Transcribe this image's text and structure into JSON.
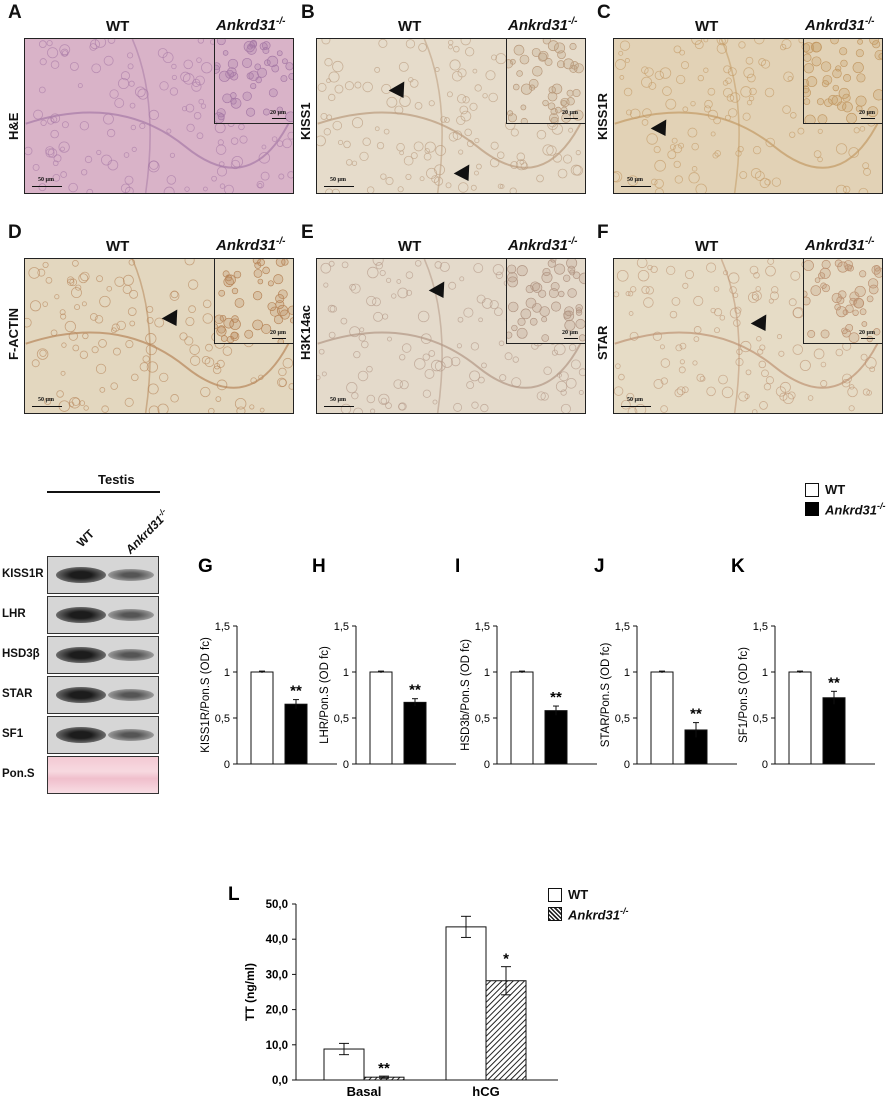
{
  "micrographs": [
    {
      "letter": "A",
      "stain": "H&E",
      "wt": "WT",
      "ko": "Ankrd31",
      "sup": "-/-",
      "scale_main": "50 µm",
      "scale_inset": "20 µm",
      "bg": "#d9b3c8",
      "cell": "#a77aa6",
      "arrows": []
    },
    {
      "letter": "B",
      "stain": "KISS1",
      "wt": "WT",
      "ko": "Ankrd31",
      "sup": "-/-",
      "scale_main": "50 µm",
      "scale_inset": "20 µm",
      "bg": "#e6dccb",
      "cell": "#b99a7c",
      "arrows": [
        [
          75,
          47
        ],
        [
          140,
          130
        ]
      ]
    },
    {
      "letter": "C",
      "stain": "KISS1R",
      "wt": "WT",
      "ko": "Ankrd31",
      "sup": "-/-",
      "scale_main": "50 µm",
      "scale_inset": "20 µm",
      "bg": "#e2d2b6",
      "cell": "#c39a65",
      "arrows": [
        [
          40,
          85
        ]
      ]
    },
    {
      "letter": "D",
      "stain": "F-ACTIN",
      "wt": "WT",
      "ko": "Ankrd31",
      "sup": "-/-",
      "scale_main": "50 µm",
      "scale_inset": "20 µm",
      "bg": "#e3d7bf",
      "cell": "#b7865a",
      "arrows": [
        [
          140,
          55
        ]
      ]
    },
    {
      "letter": "E",
      "stain": "H3K14ac",
      "wt": "WT",
      "ko": "Ankrd31",
      "sup": "-/-",
      "scale_main": "50 µm",
      "scale_inset": "20 µm",
      "bg": "#e4dacb",
      "cell": "#b29785",
      "arrows": [
        [
          115,
          27
        ]
      ]
    },
    {
      "letter": "F",
      "stain": "STAR",
      "wt": "WT",
      "ko": "Ankrd31",
      "sup": "-/-",
      "scale_main": "50 µm",
      "scale_inset": "20 µm",
      "bg": "#e6dcc6",
      "cell": "#bd9373",
      "arrows": [
        [
          140,
          60
        ]
      ]
    }
  ],
  "blot": {
    "tissue": "Testis",
    "lanes": [
      "WT",
      "Ankrd31"
    ],
    "lane_sup": "-/-",
    "rows": [
      "KISS1R",
      "LHR",
      "HSD3β",
      "STAR",
      "SF1",
      "Pon.S"
    ]
  },
  "legend_top": {
    "wt": "WT",
    "ko": "Ankrd31",
    "sup": "-/-"
  },
  "legend_bottom": {
    "wt": "WT",
    "ko": "Ankrd31",
    "sup": "-/-"
  },
  "chart_data": [
    {
      "type": "bar",
      "letter": "G",
      "ylabel": "KISS1R/Pon.S (OD fc)",
      "categories": [
        "WT",
        "Ankrd31-/-"
      ],
      "values": [
        1.0,
        0.65
      ],
      "errors": [
        0.01,
        0.05
      ],
      "significance": [
        "",
        "**"
      ],
      "yticks": [
        "0",
        "0,5",
        "1",
        "1,5"
      ],
      "ylim": [
        0,
        1.5
      ]
    },
    {
      "type": "bar",
      "letter": "H",
      "ylabel": "LHR/Pon.S (OD fc)",
      "categories": [
        "WT",
        "Ankrd31-/-"
      ],
      "values": [
        1.0,
        0.67
      ],
      "errors": [
        0.01,
        0.04
      ],
      "significance": [
        "",
        "**"
      ],
      "yticks": [
        "0",
        "0,5",
        "1",
        "1,5"
      ],
      "ylim": [
        0,
        1.5
      ]
    },
    {
      "type": "bar",
      "letter": "I",
      "ylabel": "HSD3b/Pon.S (OD fc)",
      "categories": [
        "WT",
        "Ankrd31-/-"
      ],
      "values": [
        1.0,
        0.58
      ],
      "errors": [
        0.01,
        0.05
      ],
      "significance": [
        "",
        "**"
      ],
      "yticks": [
        "0",
        "0,5",
        "1",
        "1,5"
      ],
      "ylim": [
        0,
        1.5
      ]
    },
    {
      "type": "bar",
      "letter": "J",
      "ylabel": "STAR/Pon.S (OD fc)",
      "categories": [
        "WT",
        "Ankrd31-/-"
      ],
      "values": [
        1.0,
        0.37
      ],
      "errors": [
        0.01,
        0.08
      ],
      "significance": [
        "",
        "**"
      ],
      "yticks": [
        "0",
        "0,5",
        "1",
        "1,5"
      ],
      "ylim": [
        0,
        1.5
      ]
    },
    {
      "type": "bar",
      "letter": "K",
      "ylabel": "SF1/Pon.S (OD fc)",
      "categories": [
        "WT",
        "Ankrd31-/-"
      ],
      "values": [
        1.0,
        0.72
      ],
      "errors": [
        0.01,
        0.07
      ],
      "significance": [
        "",
        "**"
      ],
      "yticks": [
        "0",
        "0,5",
        "1",
        "1,5"
      ],
      "ylim": [
        0,
        1.5
      ]
    },
    {
      "type": "bar",
      "letter": "L",
      "ylabel": "TT (ng/ml)",
      "categories": [
        "Basal",
        "hCG"
      ],
      "series": [
        {
          "name": "WT",
          "values": [
            8.8,
            43.5
          ],
          "errors": [
            1.6,
            3.0
          ],
          "significance": [
            "",
            ""
          ]
        },
        {
          "name": "Ankrd31-/-",
          "values": [
            0.8,
            28.2
          ],
          "errors": [
            0.3,
            4.0
          ],
          "significance": [
            "**",
            "*"
          ]
        }
      ],
      "yticks": [
        "0,0",
        "10,0",
        "20,0",
        "30,0",
        "40,0",
        "50,0"
      ],
      "ylim": [
        0,
        50
      ]
    }
  ]
}
